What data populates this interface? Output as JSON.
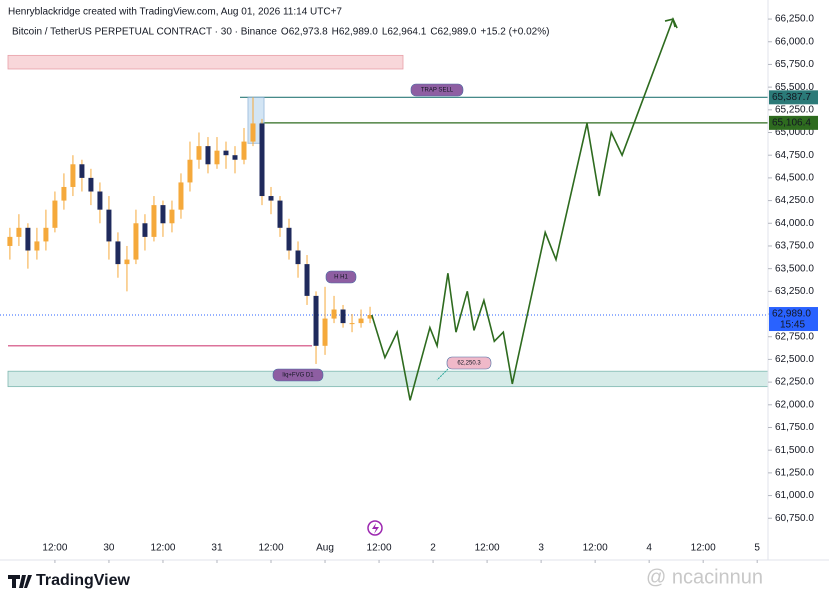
{
  "chart_data": {
    "type": "candlestick",
    "credit": "Henryblackridge created with TradingView.com, Aug 01, 2026 11:14 UTC+7",
    "title": "Bitcoin / TetherUS PERPETUAL CONTRACT · 30 · Binance",
    "ohlc_legend": [
      {
        "label": "O",
        "value": "62,973.8"
      },
      {
        "label": "H",
        "value": "62,989.0"
      },
      {
        "label": "L",
        "value": "62,964.1"
      },
      {
        "label": "C",
        "value": "62,989.0"
      }
    ],
    "change": "+15.2 (+0.02%)",
    "candles": {
      "x": [
        2,
        4,
        6,
        8,
        10,
        12,
        14,
        16,
        18,
        20,
        22,
        24,
        26,
        28,
        30,
        32,
        34,
        36,
        38,
        40,
        42,
        44,
        46,
        48,
        50,
        52,
        54,
        56,
        58,
        60,
        62,
        64,
        66,
        68,
        70,
        72,
        74,
        76,
        78,
        80,
        82
      ],
      "open": [
        63750,
        63850,
        63950,
        63700,
        63800,
        63950,
        64250,
        64400,
        64650,
        64500,
        64350,
        64150,
        63800,
        63550,
        63600,
        64000,
        63850,
        64200,
        64000,
        64150,
        64450,
        64700,
        64850,
        64650,
        64800,
        64750,
        64700,
        64900,
        65100,
        64300,
        64250,
        63950,
        63700,
        63550,
        63200,
        62650,
        62950,
        63050,
        62900,
        62900,
        62950
      ],
      "high": [
        63950,
        64100,
        64000,
        63950,
        64150,
        64350,
        64550,
        64750,
        64700,
        64600,
        64450,
        64300,
        63900,
        63750,
        64150,
        64100,
        64300,
        64250,
        64250,
        64550,
        64900,
        65000,
        64950,
        64950,
        64900,
        64850,
        65050,
        65387.7,
        65150,
        64400,
        64300,
        64050,
        63800,
        63650,
        63250,
        63300,
        63200,
        63100,
        63000,
        63050,
        63080
      ],
      "low": [
        63600,
        63750,
        63500,
        63600,
        63700,
        63900,
        64150,
        64300,
        64350,
        64200,
        64000,
        63600,
        63400,
        63250,
        63550,
        63700,
        63800,
        63850,
        63900,
        64050,
        64350,
        64600,
        64550,
        64600,
        64600,
        64550,
        64650,
        64850,
        64200,
        64100,
        63850,
        63600,
        63400,
        63100,
        62450,
        62550,
        62900,
        62850,
        62800,
        62850,
        62900
      ],
      "close": [
        63850,
        63950,
        63700,
        63800,
        63950,
        64250,
        64400,
        64650,
        64500,
        64350,
        64150,
        63800,
        63550,
        63600,
        64000,
        63850,
        64200,
        64000,
        64150,
        64450,
        64700,
        64850,
        64650,
        64800,
        64750,
        64700,
        64900,
        65100,
        64300,
        64250,
        63950,
        63700,
        63550,
        63200,
        62650,
        62950,
        63050,
        62900,
        62900,
        62950,
        62989
      ],
      "up_color": "#f5a93b",
      "down_color": "#1f2a5c"
    },
    "projection": {
      "x": [
        82.4,
        85.3,
        88,
        90.9,
        95.3,
        96.9,
        99.3,
        101.1,
        103.6,
        105.1,
        107.3,
        109.6,
        111.6,
        113.6,
        120.9,
        123.3,
        130.2,
        132.9,
        135.6,
        138,
        149.3,
        150.2
      ],
      "values": [
        62989,
        62520,
        62800,
        62050,
        62850,
        62650,
        63450,
        62800,
        63250,
        62820,
        63150,
        62700,
        62800,
        62230,
        63900,
        63600,
        65100,
        64300,
        65000,
        64750,
        66250,
        66150
      ],
      "color": "#2e6b1f"
    },
    "levels": [
      {
        "value": 65387.7,
        "label": "65,387.7",
        "color": "#2b7a78"
      },
      {
        "value": 65106.4,
        "label": "65,106.4",
        "color": "#2e6b1f"
      }
    ],
    "support_line": {
      "value": 62650,
      "color": "#d0457a"
    },
    "current_price": {
      "value": 62989.0,
      "label": "62,989.0",
      "countdown": "15:45",
      "color": "#2962ff"
    },
    "zones": [
      {
        "from": 65700,
        "to": 65850,
        "color": "#f8d7da"
      },
      {
        "from": 62200,
        "to": 62370,
        "color": "#d6ebe8"
      }
    ],
    "annotations": [
      {
        "text": "TRAP SELL"
      },
      {
        "text": "H H1"
      },
      {
        "text": "liq+FVG D1"
      },
      {
        "value": 62250.3,
        "label": "62,250.3"
      }
    ],
    "xlim": [
      -0.2,
      170.4
    ],
    "xticks": [
      {
        "value": 12,
        "label": "12:00"
      },
      {
        "value": 24,
        "label": "30"
      },
      {
        "value": 36,
        "label": "12:00"
      },
      {
        "value": 48,
        "label": "31"
      },
      {
        "value": 60,
        "label": "12:00"
      },
      {
        "value": 72,
        "label": "Aug"
      },
      {
        "value": 84,
        "label": "12:00"
      },
      {
        "value": 96,
        "label": "2"
      },
      {
        "value": 108,
        "label": "12:00"
      },
      {
        "value": 120,
        "label": "3"
      },
      {
        "value": 132,
        "label": "12:00"
      },
      {
        "value": 144,
        "label": "4"
      },
      {
        "value": 156,
        "label": "12:00"
      },
      {
        "value": 168,
        "label": "5"
      }
    ],
    "ylim": [
      60290,
      66460
    ],
    "yticks": [
      {
        "value": 60750,
        "label": "60,750.0"
      },
      {
        "value": 61000,
        "label": "61,000.0"
      },
      {
        "value": 61250,
        "label": "61,250.0"
      },
      {
        "value": 61500,
        "label": "61,500.0"
      },
      {
        "value": 61750,
        "label": "61,750.0"
      },
      {
        "value": 62000,
        "label": "62,000.0"
      },
      {
        "value": 62250,
        "label": "62,250.0"
      },
      {
        "value": 62500,
        "label": "62,500.0"
      },
      {
        "value": 62750,
        "label": "62,750.0"
      },
      {
        "value": 63000,
        "label": "63,000.0"
      },
      {
        "value": 63250,
        "label": "63,250.0"
      },
      {
        "value": 63500,
        "label": "63,500.0"
      },
      {
        "value": 63750,
        "label": "63,750.0"
      },
      {
        "value": 64000,
        "label": "64,000.0"
      },
      {
        "value": 64250,
        "label": "64,250.0"
      },
      {
        "value": 64500,
        "label": "64,500.0"
      },
      {
        "value": 64750,
        "label": "64,750.0"
      },
      {
        "value": 65000,
        "label": "65,000.0"
      },
      {
        "value": 65250,
        "label": "65,250.0"
      },
      {
        "value": 65500,
        "label": "65,500.0"
      },
      {
        "value": 65750,
        "label": "65,750.0"
      },
      {
        "value": 66000,
        "label": "66,000.0"
      },
      {
        "value": 66250,
        "label": "66,250.0"
      }
    ],
    "brand": "TradingView",
    "watermark": "@ ncacinnun"
  }
}
